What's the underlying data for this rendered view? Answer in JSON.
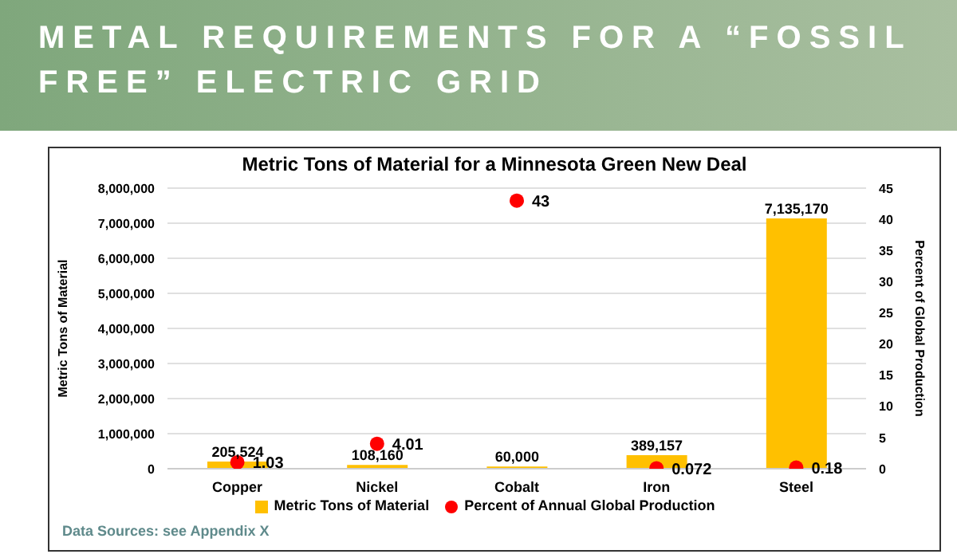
{
  "chart_data": {
    "type": "bar",
    "title": "METAL REQUIREMENTS FOR A “FOSSIL FREE” ELECTRIC GRID",
    "subtitle": "Metric Tons of Material for a Minnesota Green New Deal",
    "ylabel": "Metric Tons of Material",
    "y2label": "Percent of Global Production",
    "categories": [
      "Copper",
      "Nickel",
      "Cobalt",
      "Iron",
      "Steel"
    ],
    "series": [
      {
        "name": "Metric Tons of Material",
        "color": "#ffc000",
        "values": [
          205524,
          108160,
          60000,
          389157,
          7135170
        ],
        "value_labels": [
          "205,524",
          "108,160",
          "60,000",
          "389,157",
          "7,135,170"
        ]
      },
      {
        "name": "Percent of Annual Global Production",
        "type": "scatter",
        "axis": "y2",
        "color": "#ff0000",
        "values": [
          1.03,
          4.01,
          43,
          0.072,
          0.18
        ]
      }
    ],
    "ylim": [
      0,
      8000000
    ],
    "yticks": [
      0,
      {
        "value": 1000000,
        "label": "1,000,000"
      },
      {
        "value": 2000000,
        "label": "2,000,000"
      },
      {
        "value": 3000000,
        "label": "3,000,000"
      },
      {
        "value": 4000000,
        "label": "4,000,000"
      },
      {
        "value": 5000000,
        "label": "5,000,000"
      },
      {
        "value": 6000000,
        "label": "6,000,000"
      },
      {
        "value": 7000000,
        "label": "7,000,000"
      },
      {
        "value": 8000000,
        "label": "8,000,000"
      }
    ],
    "y2lim": [
      0,
      45
    ],
    "y2ticks": [
      0,
      5,
      10,
      15,
      20,
      25,
      30,
      35,
      40,
      45
    ],
    "grid": "y",
    "legend": "bottom",
    "data_labels": true,
    "marker": "circle",
    "annotations": [
      "Data Sources: see Appendix X"
    ]
  }
}
